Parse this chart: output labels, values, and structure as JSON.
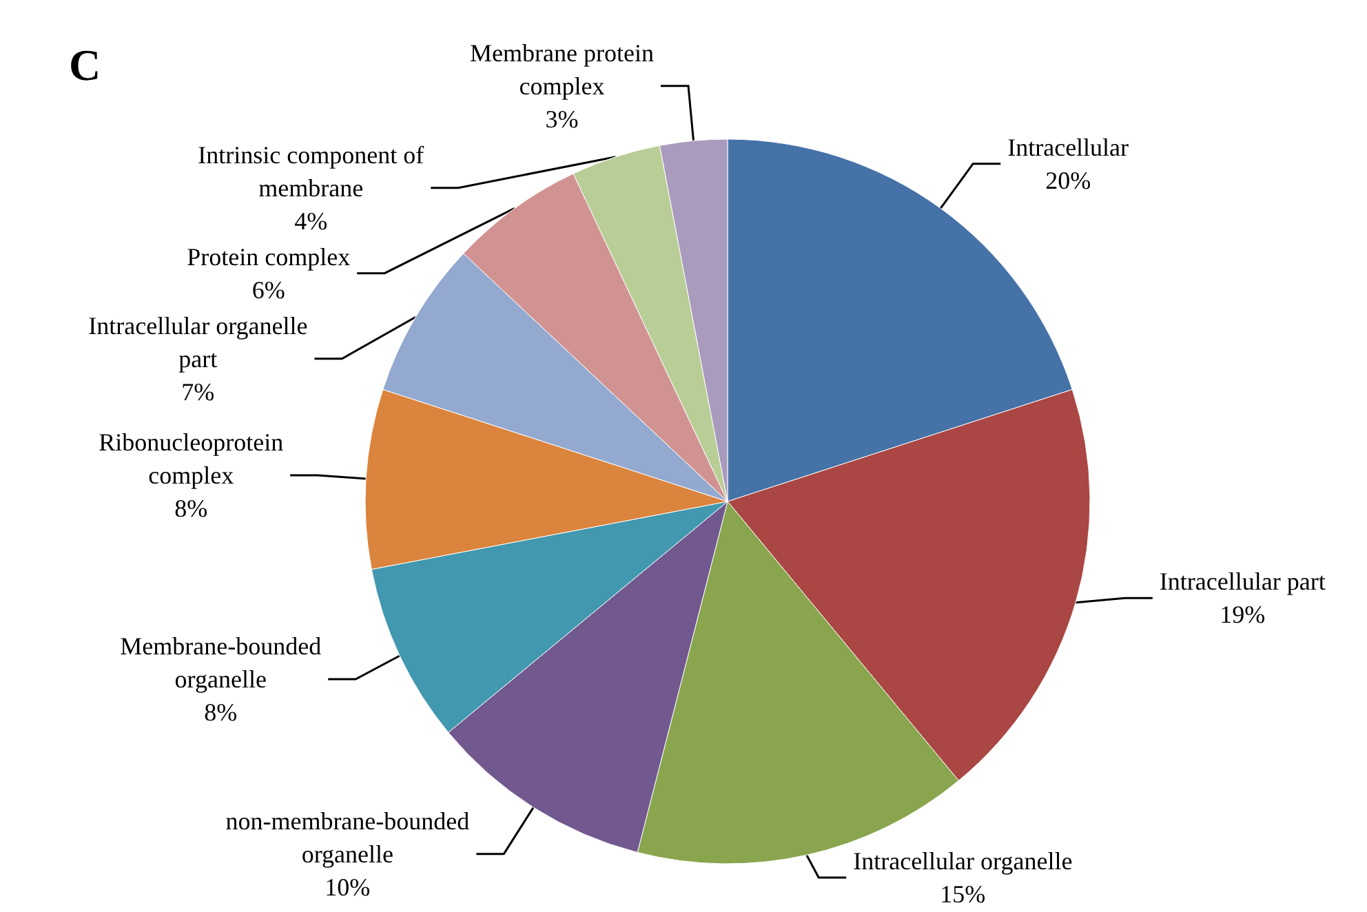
{
  "chart_data": {
    "type": "pie",
    "title": "C",
    "categories": [
      "Intracellular",
      "Intracellular part",
      "Intracellular organelle",
      "non-membrane-bounded organelle",
      "Membrane-bounded organelle",
      "Ribonucleoprotein complex",
      "Intracellular organelle part",
      "Protein complex",
      "Intrinsic component of membrane",
      "Membrane protein complex"
    ],
    "values": [
      20,
      19,
      15,
      10,
      8,
      8,
      7,
      6,
      4,
      3
    ],
    "value_labels": [
      "20%",
      "19%",
      "15%",
      "10%",
      "8%",
      "8%",
      "7%",
      "6%",
      "4%",
      "3%"
    ],
    "colors": [
      "#4572a7",
      "#aa4643",
      "#89a54e",
      "#71588f",
      "#4198af",
      "#db843d",
      "#93a9cf",
      "#d19392",
      "#b9cd96",
      "#a99bbd"
    ]
  }
}
